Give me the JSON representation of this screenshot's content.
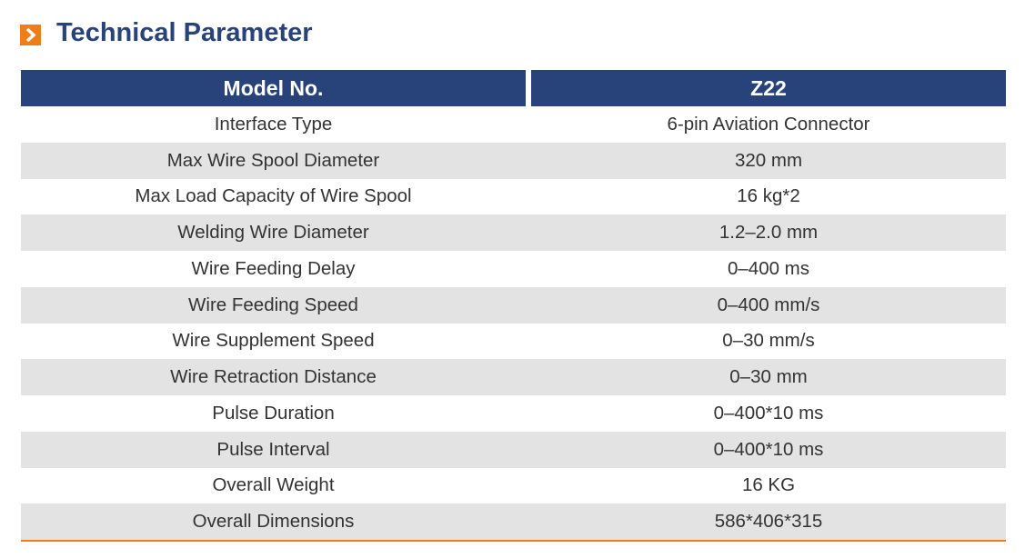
{
  "header": {
    "title": "Technical Parameter"
  },
  "table": {
    "columns": [
      "Model No.",
      "Z22"
    ],
    "rows": [
      [
        "Interface Type",
        "6-pin Aviation Connector"
      ],
      [
        "Max Wire Spool Diameter",
        "320 mm"
      ],
      [
        "Max Load Capacity of Wire Spool",
        "16 kg*2"
      ],
      [
        "Welding Wire Diameter",
        "1.2–2.0 mm"
      ],
      [
        "Wire Feeding Delay",
        "0–400 ms"
      ],
      [
        "Wire Feeding Speed",
        "0–400 mm/s"
      ],
      [
        "Wire Supplement Speed",
        "0–30 mm/s"
      ],
      [
        "Wire Retraction Distance",
        "0–30 mm"
      ],
      [
        "Pulse Duration",
        "0–400*10 ms"
      ],
      [
        "Pulse Interval",
        "0–400*10 ms"
      ],
      [
        "Overall Weight",
        "16 KG"
      ],
      [
        "Overall Dimensions",
        "586*406*315"
      ]
    ]
  }
}
